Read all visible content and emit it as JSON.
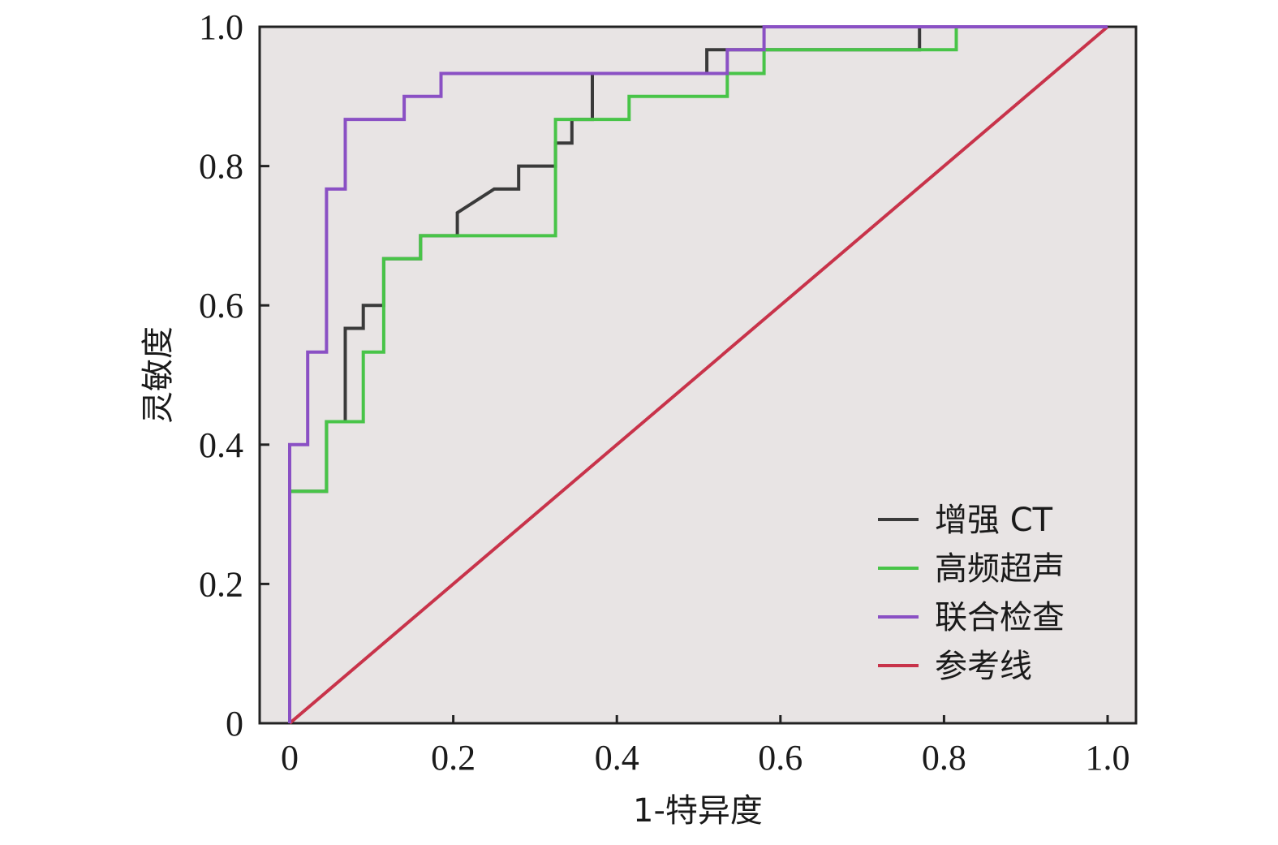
{
  "chart_data": {
    "type": "line",
    "title": "",
    "xlabel": "1-特异度",
    "ylabel": "灵敏度",
    "xlim": [
      0,
      1.0
    ],
    "ylim": [
      0,
      1.0
    ],
    "x_ticks": [
      "0",
      "0.2",
      "0.4",
      "0.6",
      "0.8",
      "1.0"
    ],
    "y_ticks": [
      "0",
      "0.2",
      "0.4",
      "0.6",
      "0.8",
      "1.0"
    ],
    "grid": false,
    "legend_position": "bottom-right",
    "background": "#e8e4e4",
    "series": [
      {
        "name": "增强 CT",
        "color": "#3a3a3a",
        "x": [
          0.0,
          0.0,
          0.045,
          0.045,
          0.068,
          0.068,
          0.09,
          0.09,
          0.115,
          0.115,
          0.16,
          0.16,
          0.205,
          0.205,
          0.25,
          0.28,
          0.28,
          0.325,
          0.325,
          0.345,
          0.345,
          0.37,
          0.37,
          0.51,
          0.51,
          0.77,
          0.77,
          1.0
        ],
        "y": [
          0.0,
          0.333,
          0.333,
          0.433,
          0.433,
          0.567,
          0.567,
          0.6,
          0.6,
          0.667,
          0.667,
          0.7,
          0.7,
          0.733,
          0.767,
          0.767,
          0.8,
          0.8,
          0.833,
          0.833,
          0.867,
          0.867,
          0.933,
          0.933,
          0.967,
          0.967,
          1.0,
          1.0
        ]
      },
      {
        "name": "高频超声",
        "color": "#48c448",
        "x": [
          0.0,
          0.0,
          0.045,
          0.045,
          0.09,
          0.09,
          0.115,
          0.115,
          0.16,
          0.16,
          0.325,
          0.325,
          0.415,
          0.415,
          0.535,
          0.535,
          0.58,
          0.58,
          0.815,
          0.815,
          1.0
        ],
        "y": [
          0.0,
          0.333,
          0.333,
          0.433,
          0.433,
          0.533,
          0.533,
          0.667,
          0.667,
          0.7,
          0.7,
          0.867,
          0.867,
          0.9,
          0.9,
          0.933,
          0.933,
          0.967,
          0.967,
          1.0,
          1.0
        ]
      },
      {
        "name": "联合检查",
        "color": "#8a50c4",
        "x": [
          0.0,
          0.0,
          0.022,
          0.022,
          0.045,
          0.045,
          0.068,
          0.068,
          0.14,
          0.14,
          0.185,
          0.185,
          0.535,
          0.535,
          0.58,
          0.58,
          1.0
        ],
        "y": [
          0.0,
          0.4,
          0.4,
          0.533,
          0.533,
          0.767,
          0.767,
          0.867,
          0.867,
          0.9,
          0.9,
          0.933,
          0.933,
          0.967,
          0.967,
          1.0,
          1.0
        ]
      },
      {
        "name": "参考线",
        "color": "#c8334a",
        "x": [
          0.0,
          1.0
        ],
        "y": [
          0.0,
          1.0
        ]
      }
    ]
  }
}
